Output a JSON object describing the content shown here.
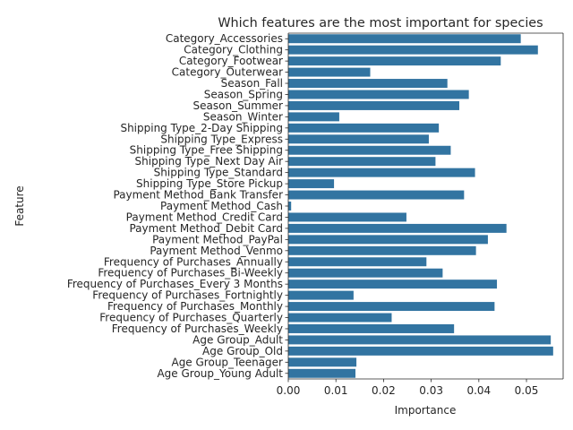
{
  "chart_data": {
    "type": "bar",
    "orientation": "horizontal",
    "title": "Which features are the most important for species",
    "xlabel": "Importance",
    "ylabel": "Feature",
    "xlim": [
      0,
      0.0577
    ],
    "xticks": [
      "0.00",
      "0.01",
      "0.02",
      "0.03",
      "0.04",
      "0.05"
    ],
    "bar_color": "#3274a1",
    "grid": false,
    "legend": "none",
    "categories": [
      "Category_Accessories",
      "Category_Clothing",
      "Category_Footwear",
      "Category_Outerwear",
      "Season_Fall",
      "Season_Spring",
      "Season_Summer",
      "Season_Winter",
      "Shipping Type_2-Day Shipping",
      "Shipping Type_Express",
      "Shipping Type_Free Shipping",
      "Shipping Type_Next Day Air",
      "Shipping Type_Standard",
      "Shipping Type_Store Pickup",
      "Payment Method_Bank Transfer",
      "Payment Method_Cash",
      "Payment Method_Credit Card",
      "Payment Method_Debit Card",
      "Payment Method_PayPal",
      "Payment Method_Venmo",
      "Frequency of Purchases_Annually",
      "Frequency of Purchases_Bi-Weekly",
      "Frequency of Purchases_Every 3 Months",
      "Frequency of Purchases_Fortnightly",
      "Frequency of Purchases_Monthly",
      "Frequency of Purchases_Quarterly",
      "Frequency of Purchases_Weekly",
      "Age Group_Adult",
      "Age Group_Old",
      "Age Group_Teenager",
      "Age Group_Young Adult"
    ],
    "values": [
      0.0488,
      0.0524,
      0.0446,
      0.0172,
      0.0334,
      0.0379,
      0.0359,
      0.0107,
      0.0316,
      0.0295,
      0.0341,
      0.0309,
      0.0392,
      0.0096,
      0.0369,
      0.0006,
      0.0248,
      0.0458,
      0.0419,
      0.0394,
      0.029,
      0.0324,
      0.0438,
      0.0137,
      0.0433,
      0.0217,
      0.0348,
      0.0551,
      0.0556,
      0.0143,
      0.0141
    ]
  }
}
